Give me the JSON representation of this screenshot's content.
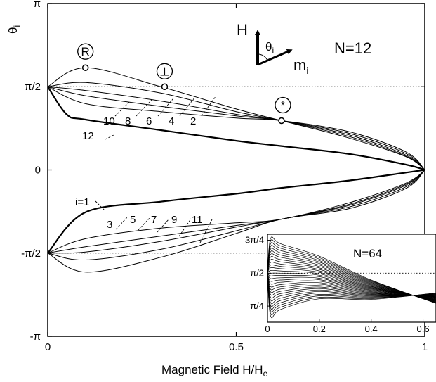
{
  "chart_data": {
    "type": "line",
    "xlabel": "Magnetic Field H/H",
    "xlabel_sub": "e",
    "ylabel": "θ",
    "ylabel_sub": "i",
    "xlim": [
      0,
      1
    ],
    "ylim": [
      "-π",
      "π"
    ],
    "x_ticks": [
      {
        "v": 0,
        "label": "0"
      },
      {
        "v": 0.5,
        "label": "0.5"
      },
      {
        "v": 1,
        "label": "1"
      }
    ],
    "y_ticks": [
      {
        "v": 3.14159,
        "label": "π"
      },
      {
        "v": 1.5708,
        "label": "π/2"
      },
      {
        "v": 0,
        "label": "0"
      },
      {
        "v": -1.5708,
        "label": "-π/2"
      },
      {
        "v": -3.14159,
        "label": "-π"
      }
    ],
    "reference_lines": [
      1.5708,
      0,
      -1.5708
    ],
    "annotations": {
      "n_label": "N=12",
      "field_label": "H",
      "angle_label": "θ",
      "angle_sub": "i",
      "moment_label": "m",
      "moment_sub": "i",
      "points": [
        {
          "symbol": "R",
          "x": 0.1,
          "y": 1.93
        },
        {
          "symbol": "⊥",
          "x": 0.31,
          "y": 1.57
        },
        {
          "symbol": "*",
          "x": 0.62,
          "y": 0.93
        }
      ],
      "upper_indices": [
        "12",
        "10",
        "8",
        "6",
        "4",
        "2"
      ],
      "lower_indices": [
        "i=1",
        "3",
        "5",
        "7",
        "9",
        "11"
      ]
    },
    "series": [
      {
        "i": 1,
        "x": [
          0,
          0.1,
          0.3,
          0.5,
          0.62,
          0.8,
          0.95,
          1
        ],
        "y": [
          -1.57,
          -0.8,
          -0.6,
          -0.45,
          -0.34,
          -0.2,
          -0.05,
          0
        ]
      },
      {
        "i": 2,
        "x": [
          0,
          0.1,
          0.3,
          0.5,
          0.62,
          0.8,
          0.95,
          1
        ],
        "y": [
          1.57,
          1.93,
          1.57,
          1.15,
          0.93,
          0.6,
          0.25,
          0
        ]
      },
      {
        "i": 3,
        "x": [
          0,
          0.1,
          0.3,
          0.5,
          0.62,
          0.8,
          0.95,
          1
        ],
        "y": [
          -1.57,
          -1.3,
          -1.1,
          -1.0,
          -0.93,
          -0.62,
          -0.25,
          0
        ]
      },
      {
        "i": 4,
        "x": [
          0,
          0.1,
          0.3,
          0.5,
          0.62,
          0.8,
          0.95,
          1
        ],
        "y": [
          1.57,
          1.65,
          1.45,
          1.1,
          0.93,
          0.63,
          0.26,
          0
        ]
      },
      {
        "i": 5,
        "x": [
          0,
          0.1,
          0.3,
          0.5,
          0.62,
          0.8,
          0.95,
          1
        ],
        "y": [
          -1.57,
          -1.45,
          -1.25,
          -1.05,
          -0.93,
          -0.65,
          -0.27,
          0
        ]
      },
      {
        "i": 6,
        "x": [
          0,
          0.1,
          0.3,
          0.5,
          0.62,
          0.8,
          0.95,
          1
        ],
        "y": [
          1.57,
          1.5,
          1.3,
          1.05,
          0.93,
          0.66,
          0.28,
          0
        ]
      },
      {
        "i": 7,
        "x": [
          0,
          0.1,
          0.3,
          0.5,
          0.62,
          0.8,
          0.95,
          1
        ],
        "y": [
          -1.57,
          -1.55,
          -1.35,
          -1.08,
          -0.93,
          -0.67,
          -0.29,
          0
        ]
      },
      {
        "i": 8,
        "x": [
          0,
          0.1,
          0.3,
          0.5,
          0.62,
          0.8,
          0.95,
          1
        ],
        "y": [
          1.57,
          1.4,
          1.2,
          1.02,
          0.93,
          0.69,
          0.31,
          0
        ]
      },
      {
        "i": 9,
        "x": [
          0,
          0.1,
          0.3,
          0.5,
          0.62,
          0.8,
          0.95,
          1
        ],
        "y": [
          -1.57,
          -1.7,
          -1.5,
          -1.15,
          -0.93,
          -0.7,
          -0.32,
          0
        ]
      },
      {
        "i": 10,
        "x": [
          0,
          0.1,
          0.3,
          0.5,
          0.62,
          0.8,
          0.95,
          1
        ],
        "y": [
          1.57,
          1.25,
          1.1,
          0.98,
          0.93,
          0.72,
          0.34,
          0
        ]
      },
      {
        "i": 11,
        "x": [
          0,
          0.1,
          0.3,
          0.5,
          0.62,
          0.8,
          0.95,
          1
        ],
        "y": [
          -1.57,
          -1.93,
          -1.65,
          -1.2,
          -0.93,
          -0.73,
          -0.35,
          0
        ]
      },
      {
        "i": 12,
        "x": [
          0,
          0.05,
          0.1,
          0.3,
          0.5,
          0.62,
          0.8,
          0.95,
          1
        ],
        "y": [
          1.57,
          1.05,
          0.95,
          0.75,
          0.55,
          0.45,
          0.3,
          0.1,
          0
        ]
      }
    ],
    "inset": {
      "label": "N=64",
      "xlim": [
        0,
        0.65
      ],
      "ylim": [
        0.4,
        2.5
      ],
      "x_ticks": [
        {
          "v": 0,
          "label": "0"
        },
        {
          "v": 0.2,
          "label": "0.2"
        },
        {
          "v": 0.4,
          "label": "0.4"
        },
        {
          "v": 0.6,
          "label": "0.6"
        }
      ],
      "y_ticks": [
        {
          "v": 2.356,
          "label": "3π/4"
        },
        {
          "v": 1.5708,
          "label": "π/2"
        },
        {
          "v": 0.785,
          "label": "π/4"
        }
      ],
      "reference_line": 1.5708
    }
  }
}
